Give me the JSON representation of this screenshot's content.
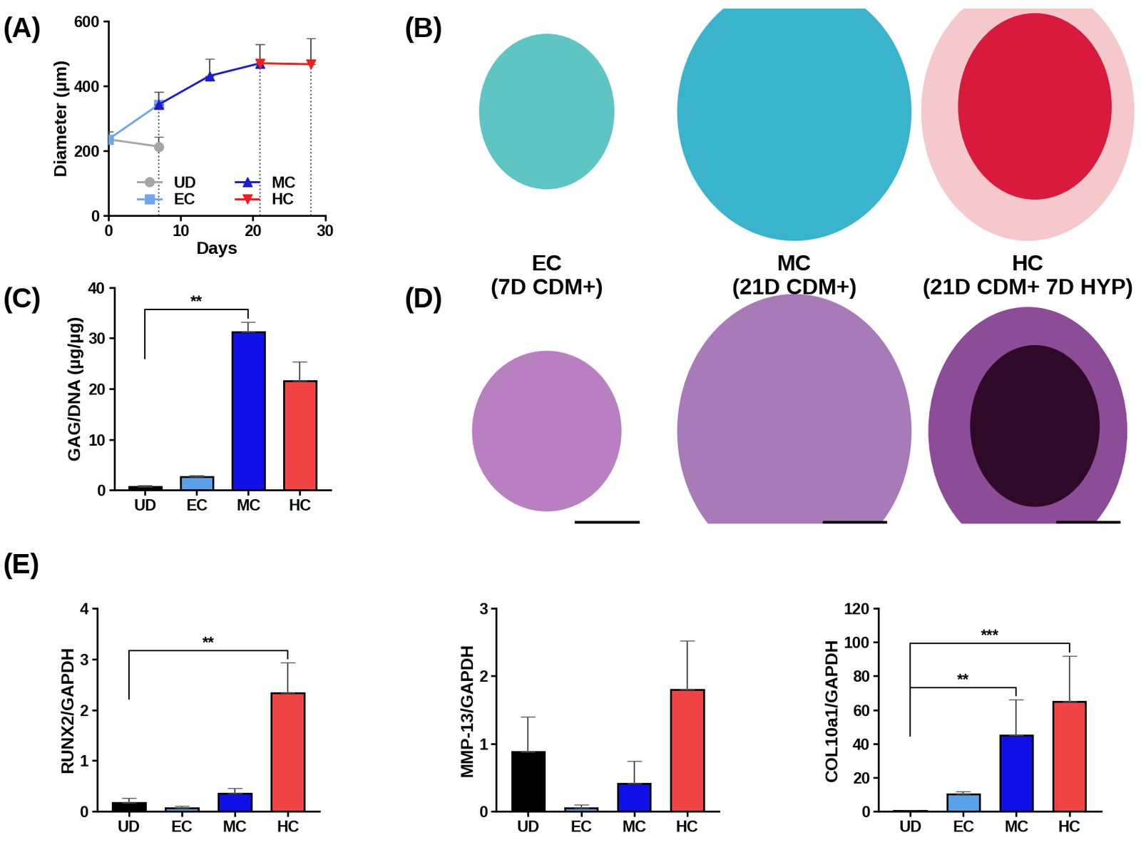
{
  "chart_data": [
    {
      "panel": "(A)",
      "type": "line",
      "x_label": "Days",
      "y_label": "Diameter (µm)",
      "xlim": [
        0,
        30
      ],
      "xticks": [
        0,
        10,
        20,
        30
      ],
      "ylim": [
        0,
        600
      ],
      "yticks": [
        0,
        200,
        400,
        600
      ],
      "legend": "lower center",
      "series": [
        {
          "name": "UD",
          "color": "#a6a6a6",
          "marker": "circle",
          "x": [
            0,
            7
          ],
          "values": [
            235,
            213
          ],
          "errors": [
            25,
            30
          ]
        },
        {
          "name": "EC",
          "color": "#6fa8ea",
          "marker": "square",
          "x": [
            0,
            7
          ],
          "values": [
            235,
            343
          ],
          "errors": [
            25,
            38
          ]
        },
        {
          "name": "MC",
          "color": "#1c1ccc",
          "marker": "triangle_up",
          "x": [
            7,
            14,
            21
          ],
          "values": [
            343,
            431,
            470
          ],
          "errors": [
            38,
            52,
            58
          ]
        },
        {
          "name": "HC",
          "color": "#f01e1e",
          "marker": "triangle_down",
          "x": [
            21,
            28
          ],
          "values": [
            470,
            467
          ],
          "errors": [
            58,
            80
          ]
        }
      ]
    },
    {
      "panel": "(C)",
      "type": "bar",
      "y_label": "GAG/DNA (µg/µg)",
      "categories": [
        "UD",
        "EC",
        "MC",
        "HC"
      ],
      "values": [
        0.7,
        2.6,
        31.2,
        21.6
      ],
      "errors": [
        0.2,
        0.3,
        2.0,
        3.7
      ],
      "colors": [
        "#000000",
        "#5aa0e6",
        "#1010e6",
        "#f04444"
      ],
      "ylim": [
        0,
        40
      ],
      "yticks": [
        0,
        10,
        20,
        30,
        40
      ],
      "annotations": [
        {
          "from": "UD",
          "to": "MC",
          "text": "**"
        }
      ]
    },
    {
      "panel": "(E)",
      "type": "bar",
      "y_label": "RUNX2/GAPDH",
      "categories": [
        "UD",
        "EC",
        "MC",
        "HC"
      ],
      "values": [
        0.17,
        0.07,
        0.35,
        2.33
      ],
      "errors": [
        0.09,
        0.03,
        0.1,
        0.6
      ],
      "colors": [
        "#000000",
        "#5aa0e6",
        "#1010e6",
        "#f04444"
      ],
      "ylim": [
        0,
        4
      ],
      "yticks": [
        0,
        1,
        2,
        3,
        4
      ],
      "annotations": [
        {
          "from": "UD",
          "to": "HC",
          "text": "**"
        }
      ]
    },
    {
      "type": "bar",
      "y_label": "MMP-13/GAPDH",
      "categories": [
        "UD",
        "EC",
        "MC",
        "HC"
      ],
      "values": [
        0.88,
        0.05,
        0.41,
        1.8
      ],
      "errors": [
        0.52,
        0.05,
        0.33,
        0.72
      ],
      "colors": [
        "#000000",
        "#5aa0e6",
        "#1010e6",
        "#f04444"
      ],
      "ylim": [
        0,
        3
      ],
      "yticks": [
        0,
        1,
        2,
        3
      ]
    },
    {
      "type": "bar",
      "y_label": "COL10a1/GAPDH",
      "categories": [
        "UD",
        "EC",
        "MC",
        "HC"
      ],
      "values": [
        0.3,
        10,
        45,
        65
      ],
      "errors": [
        0,
        1.5,
        21,
        27
      ],
      "colors": [
        "#000000",
        "#5aa0e6",
        "#1010e6",
        "#f04444"
      ],
      "ylim": [
        0,
        120
      ],
      "yticks": [
        0,
        20,
        40,
        60,
        80,
        100,
        120
      ],
      "annotations": [
        {
          "from": "UD",
          "to": "MC",
          "text": "**"
        },
        {
          "from": "UD",
          "to": "HC",
          "text": "***"
        }
      ]
    }
  ],
  "images": [
    {
      "panel": "(B)",
      "captions": [
        "EC\n(7D CDM+)",
        "MC\n(21D CDM+)",
        "HC\n(21D CDM+ 7D HYP)"
      ]
    },
    {
      "panel": "(D)"
    }
  ]
}
